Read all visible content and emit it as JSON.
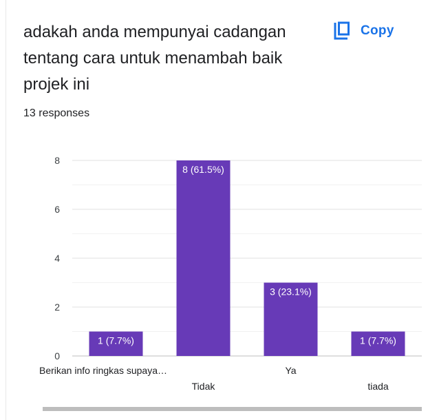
{
  "question": {
    "title": "adakah anda mempunyai cadangan tentang cara untuk menambah baik projek ini",
    "responses": "13 responses"
  },
  "toolbar": {
    "copy_label": "Copy",
    "copy_icon": "copy-icon"
  },
  "colors": {
    "bar": "#673ab7",
    "accent": "#1a73e8",
    "grid": "#e0e0e0",
    "text": "#202124",
    "axis_text": "#3c4043"
  },
  "chart_data": {
    "type": "bar",
    "categories": [
      "Berikan info ringkas supaya…",
      "Tidak",
      "Ya",
      "tiada"
    ],
    "values": [
      1,
      8,
      3,
      1
    ],
    "data_labels": [
      "1 (7.7%)",
      "8 (61.5%)",
      "3 (23.1%)",
      "1 (7.7%)"
    ],
    "y_ticks": [
      0,
      2,
      4,
      6,
      8
    ],
    "ylim": [
      0,
      8
    ],
    "grid": true,
    "title": "",
    "xlabel": "",
    "ylabel": ""
  }
}
